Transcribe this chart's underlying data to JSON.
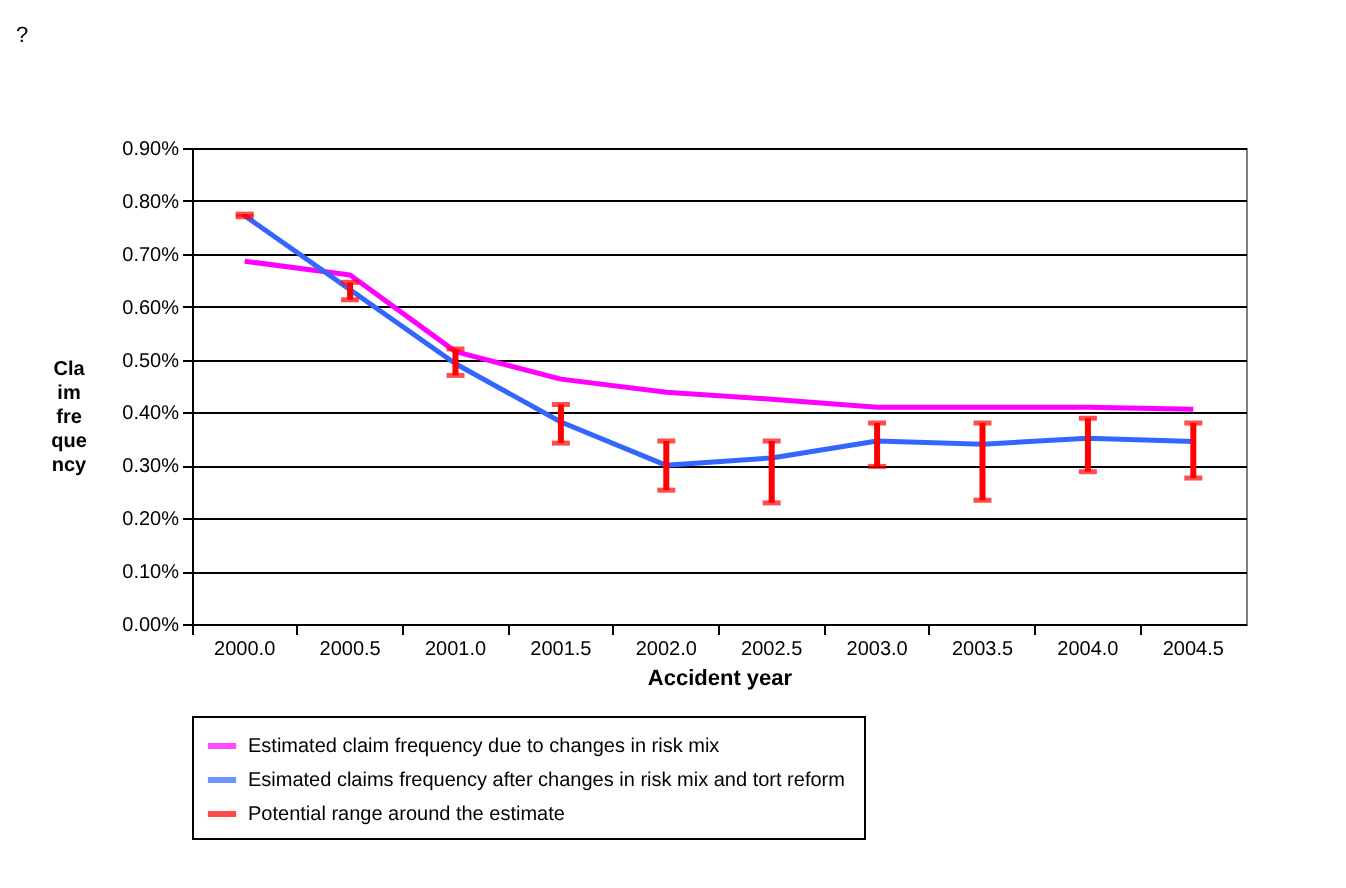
{
  "chart_data": {
    "type": "line",
    "xlabel": "Accident year",
    "ylabel": "Claim frequency",
    "categories": [
      "2000.0",
      "2000.5",
      "2001.0",
      "2001.5",
      "2002.0",
      "2002.5",
      "2003.0",
      "2003.5",
      "2004.0",
      "2004.5"
    ],
    "series": [
      {
        "name": "Estimated claim frequency due to changes in risk mix",
        "color": "#ff00ff",
        "values": [
          0.686,
          0.66,
          0.515,
          0.463,
          0.438,
          0.425,
          0.41,
          0.41,
          0.41,
          0.406
        ]
      },
      {
        "name": "Esimated claims frequency after changes in  risk mix and tort reform",
        "color": "#3366ff",
        "values": [
          0.772,
          0.632,
          0.492,
          0.382,
          0.3,
          0.314,
          0.346,
          0.34,
          0.351,
          0.345
        ],
        "errors": [
          [
            0.77,
            0.775
          ],
          [
            0.613,
            0.646
          ],
          [
            0.47,
            0.52
          ],
          [
            0.342,
            0.415
          ],
          [
            0.253,
            0.346
          ],
          [
            0.229,
            0.346
          ],
          [
            0.298,
            0.38
          ],
          [
            0.234,
            0.38
          ],
          [
            0.288,
            0.389
          ],
          [
            0.276,
            0.38
          ]
        ]
      },
      {
        "name": "Potential range around the estimate",
        "color": "#ff0000",
        "values": [
          null,
          null,
          null,
          null,
          null,
          null,
          null,
          null,
          null,
          null
        ]
      }
    ],
    "ylim": [
      0,
      0.9
    ],
    "yticks": [
      {
        "value": 0,
        "label": "0.00%"
      },
      {
        "value": 0.1,
        "label": "0.10%"
      },
      {
        "value": 0.2,
        "label": "0.20%"
      },
      {
        "value": 0.3,
        "label": "0.30%"
      },
      {
        "value": 0.4,
        "label": "0.40%"
      },
      {
        "value": 0.5,
        "label": "0.50%"
      },
      {
        "value": 0.6,
        "label": "0.60%"
      },
      {
        "value": 0.7,
        "label": "0.70%"
      },
      {
        "value": 0.8,
        "label": "0.80%"
      },
      {
        "value": 0.9,
        "label": "0.90%"
      }
    ],
    "grid": "y",
    "legend": "bottom",
    "marker": "none",
    "line_style": "solid",
    "annotations": [
      "?"
    ]
  }
}
